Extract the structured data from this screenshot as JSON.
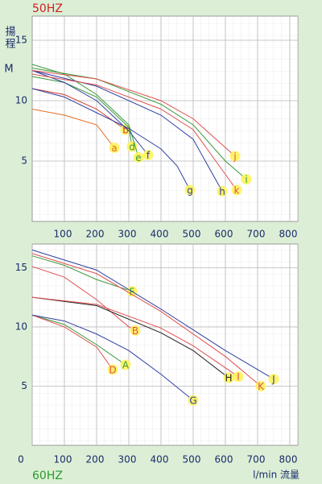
{
  "chart_data": [
    {
      "type": "line",
      "title": "50HZ",
      "y_label": "揚程",
      "y_unit": "M",
      "xlim": [
        0,
        825
      ],
      "ylim": [
        0,
        17
      ],
      "xticks": [
        100,
        200,
        300,
        400,
        500,
        600,
        700,
        800
      ],
      "yticks": [
        5,
        10,
        15
      ],
      "grid": true,
      "series": [
        {
          "name": "a",
          "color": "#e07020",
          "x": [
            0,
            100,
            200,
            255
          ],
          "values": [
            9.3,
            8.8,
            8,
            6.1
          ]
        },
        {
          "name": "b",
          "color": "#d04030",
          "x": [
            0,
            100,
            200,
            290
          ],
          "values": [
            11,
            10.5,
            9.3,
            7.6
          ]
        },
        {
          "name": "d",
          "color": "#3a9a3a",
          "x": [
            0,
            100,
            200,
            300,
            310
          ],
          "values": [
            12,
            11.5,
            10.3,
            7.8,
            6.2
          ]
        },
        {
          "name": "e",
          "color": "#3a9a3a",
          "x": [
            0,
            100,
            200,
            300,
            330
          ],
          "values": [
            13,
            12.2,
            10.5,
            8,
            5.3
          ]
        },
        {
          "name": "f",
          "color": "#3040a0",
          "x": [
            0,
            100,
            200,
            300,
            360
          ],
          "values": [
            12.5,
            11.5,
            10,
            7.5,
            5.5
          ]
        },
        {
          "name": "g",
          "color": "#3040a0",
          "x": [
            0,
            100,
            200,
            300,
            400,
            450,
            490
          ],
          "values": [
            11,
            10.3,
            9,
            7.7,
            6,
            4.6,
            2.6
          ]
        },
        {
          "name": "h",
          "color": "#3040a0",
          "x": [
            0,
            200,
            400,
            500,
            590
          ],
          "values": [
            12.5,
            11.2,
            8.8,
            6.8,
            2.5
          ]
        },
        {
          "name": "i",
          "color": "#3a9a3a",
          "x": [
            0,
            200,
            400,
            500,
            600,
            665
          ],
          "values": [
            12.7,
            11.8,
            9.7,
            8,
            5,
            3.5
          ]
        },
        {
          "name": "j",
          "color": "#e05050",
          "x": [
            0,
            200,
            400,
            500,
            630
          ],
          "values": [
            12.5,
            11.8,
            10,
            8.5,
            5.4
          ]
        },
        {
          "name": "k",
          "color": "#e05050",
          "x": [
            0,
            200,
            400,
            500,
            635
          ],
          "values": [
            12.2,
            11.3,
            9.3,
            7.6,
            2.6
          ]
        }
      ]
    },
    {
      "type": "line",
      "title": "60HZ",
      "x_label": "l/min 流量",
      "xlim": [
        0,
        825
      ],
      "ylim": [
        0,
        17
      ],
      "xticks": [
        0,
        100,
        200,
        300,
        400,
        500,
        600,
        700,
        800
      ],
      "yticks": [
        5,
        10,
        15
      ],
      "grid": true,
      "series": [
        {
          "name": "A",
          "color": "#3a9a3a",
          "x": [
            0,
            100,
            200,
            290
          ],
          "values": [
            11,
            10.2,
            8.5,
            6.8
          ]
        },
        {
          "name": "D",
          "color": "#e05050",
          "x": [
            0,
            100,
            200,
            250
          ],
          "values": [
            11,
            10,
            8.3,
            6.4
          ]
        },
        {
          "name": "G",
          "color": "#3040a0",
          "x": [
            0,
            100,
            200,
            300,
            400,
            500
          ],
          "values": [
            11,
            10.5,
            9.4,
            8,
            6,
            3.8
          ]
        },
        {
          "name": "B",
          "color": "#e05050",
          "x": [
            0,
            100,
            200,
            300,
            320
          ],
          "values": [
            15.1,
            14.2,
            12.3,
            10,
            9.7
          ]
        },
        {
          "name": "F",
          "color": "#3a9a3a",
          "x": [
            0,
            100,
            200,
            310
          ],
          "values": [
            16,
            15.2,
            14,
            13
          ]
        },
        {
          "name": "H",
          "color": "#202020",
          "x": [
            0,
            200,
            400,
            500,
            610
          ],
          "values": [
            12.5,
            11.8,
            9.5,
            8,
            5.7
          ]
        },
        {
          "name": "I",
          "color": "#e05050",
          "x": [
            0,
            200,
            400,
            500,
            640
          ],
          "values": [
            12.5,
            11.9,
            9.9,
            8.4,
            5.8
          ]
        },
        {
          "name": "K",
          "color": "#e05050",
          "x": [
            0,
            200,
            400,
            600,
            710
          ],
          "values": [
            16.2,
            14.5,
            11.3,
            7.5,
            5
          ]
        },
        {
          "name": "J",
          "color": "#3040a0",
          "x": [
            0,
            200,
            400,
            600,
            750
          ],
          "values": [
            16.5,
            14.8,
            11.5,
            8,
            5.6
          ]
        }
      ]
    }
  ]
}
